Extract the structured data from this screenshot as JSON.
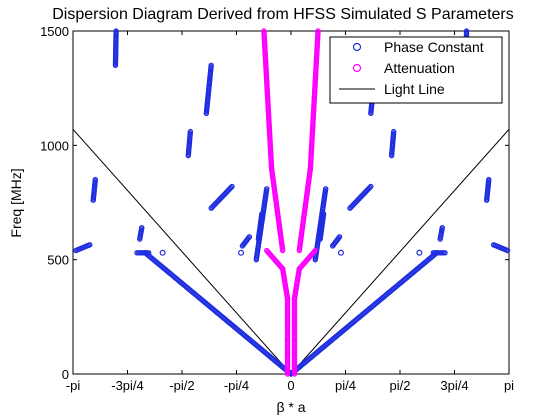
{
  "chart_data": {
    "type": "scatter",
    "title": "Dispersion Diagram Derived from HFSS Simulated S Parameters",
    "xlabel": "β * a",
    "ylabel": "Freq [MHz]",
    "xlim": [
      -3.1416,
      3.1416
    ],
    "ylim": [
      0,
      1500
    ],
    "x_ticks": [
      {
        "value": -3.1416,
        "label": "-pi"
      },
      {
        "value": -2.3562,
        "label": "-3pi/4"
      },
      {
        "value": -1.5708,
        "label": "-pi/2"
      },
      {
        "value": -0.7854,
        "label": "-pi/4"
      },
      {
        "value": 0,
        "label": "0"
      },
      {
        "value": 0.7854,
        "label": "pi/4"
      },
      {
        "value": 1.5708,
        "label": "pi/2"
      },
      {
        "value": 2.3562,
        "label": "3pi/4"
      },
      {
        "value": 3.1416,
        "label": "pi"
      }
    ],
    "y_ticks": [
      {
        "value": 0,
        "label": "0"
      },
      {
        "value": 500,
        "label": "500"
      },
      {
        "value": 1000,
        "label": "1000"
      },
      {
        "value": 1500,
        "label": "1500"
      }
    ],
    "legend_position": "top-right",
    "series": [
      {
        "name": "Phase Constant",
        "color": "#1f2ee0",
        "marker": "circle",
        "segments": [
          [
            [
              0.0,
              0
            ],
            [
              2.1,
              530
            ]
          ],
          [
            [
              -0.0,
              0
            ],
            [
              -2.1,
              530
            ]
          ],
          [
            [
              -3.1,
              540
            ],
            [
              -2.9,
              565
            ]
          ],
          [
            [
              2.92,
              565
            ],
            [
              3.12,
              540
            ]
          ],
          [
            [
              -2.85,
              760
            ],
            [
              -2.82,
              850
            ]
          ],
          [
            [
              2.82,
              760
            ],
            [
              2.85,
              850
            ]
          ],
          [
            [
              -2.18,
              590
            ],
            [
              -2.15,
              640
            ]
          ],
          [
            [
              2.15,
              590
            ],
            [
              2.18,
              640
            ]
          ],
          [
            [
              -1.48,
              955
            ],
            [
              -1.45,
              1060
            ]
          ],
          [
            [
              1.45,
              955
            ],
            [
              1.48,
              1060
            ]
          ],
          [
            [
              -1.22,
              1140
            ],
            [
              -1.15,
              1350
            ]
          ],
          [
            [
              1.15,
              1140
            ],
            [
              1.22,
              1350
            ]
          ],
          [
            [
              -2.53,
              1350
            ],
            [
              -2.52,
              1500
            ]
          ],
          [
            [
              2.52,
              1350
            ],
            [
              2.53,
              1500
            ]
          ],
          [
            [
              -0.7,
              560
            ],
            [
              -0.6,
              600
            ]
          ],
          [
            [
              0.6,
              560
            ],
            [
              0.7,
              600
            ]
          ],
          [
            [
              -0.5,
              500
            ],
            [
              -0.35,
              810
            ]
          ],
          [
            [
              0.35,
              500
            ],
            [
              0.5,
              810
            ]
          ],
          [
            [
              -0.47,
              590
            ],
            [
              -0.42,
              700
            ]
          ],
          [
            [
              0.42,
              590
            ],
            [
              0.47,
              700
            ]
          ],
          [
            [
              -1.15,
              725
            ],
            [
              -0.85,
              820
            ]
          ],
          [
            [
              0.85,
              725
            ],
            [
              1.15,
              820
            ]
          ],
          [
            [
              -2.22,
              530
            ],
            [
              -2.05,
              530
            ]
          ],
          [
            [
              2.05,
              530
            ],
            [
              2.22,
              530
            ]
          ]
        ]
      },
      {
        "name": "Attenuation",
        "color": "#ff00ff",
        "marker": "circle",
        "segments": [
          [
            [
              -0.05,
              0
            ],
            [
              -0.05,
              330
            ]
          ],
          [
            [
              0.05,
              0
            ],
            [
              0.05,
              330
            ]
          ],
          [
            [
              -0.05,
              330
            ],
            [
              -0.12,
              460
            ]
          ],
          [
            [
              0.05,
              330
            ],
            [
              0.12,
              460
            ]
          ],
          [
            [
              -0.12,
              460
            ],
            [
              -0.35,
              540
            ]
          ],
          [
            [
              0.12,
              460
            ],
            [
              0.35,
              540
            ]
          ],
          [
            [
              -0.12,
              540
            ],
            [
              -0.28,
              900
            ]
          ],
          [
            [
              0.12,
              540
            ],
            [
              0.28,
              900
            ]
          ],
          [
            [
              -0.28,
              900
            ],
            [
              -0.39,
              1500
            ]
          ],
          [
            [
              0.28,
              900
            ],
            [
              0.39,
              1500
            ]
          ]
        ]
      },
      {
        "name": "Light Line",
        "color": "#000000",
        "marker": "line",
        "segments": [
          [
            [
              -3.1416,
              1070
            ],
            [
              0,
              0
            ]
          ],
          [
            [
              0,
              0
            ],
            [
              3.1416,
              1070
            ]
          ]
        ]
      }
    ],
    "extra_markers": [
      {
        "series": "Phase Constant",
        "x": -1.85,
        "y": 530
      },
      {
        "series": "Phase Constant",
        "x": 1.85,
        "y": 530
      },
      {
        "series": "Phase Constant",
        "x": -0.72,
        "y": 530
      },
      {
        "series": "Phase Constant",
        "x": 0.72,
        "y": 530
      }
    ]
  }
}
